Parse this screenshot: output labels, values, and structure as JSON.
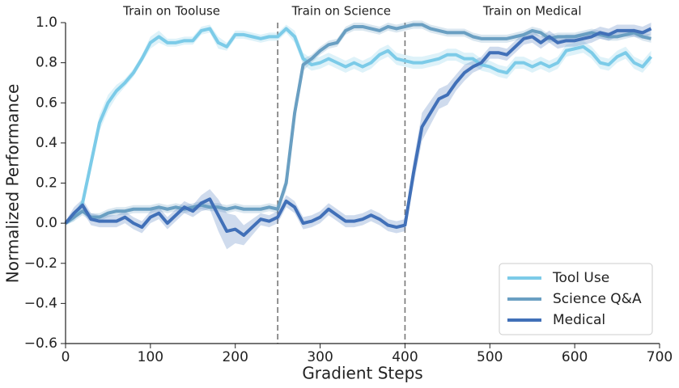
{
  "chart_data": {
    "type": "line",
    "xlabel": "Gradient Steps",
    "ylabel": "Normalized Performance",
    "xlim": [
      0,
      700
    ],
    "ylim": [
      -0.6,
      1.0
    ],
    "xticks": [
      0,
      100,
      200,
      300,
      400,
      500,
      600,
      700
    ],
    "yticks": [
      {
        "value": -0.6,
        "label": "−0.6"
      },
      {
        "value": -0.4,
        "label": "−0.4"
      },
      {
        "value": -0.2,
        "label": "−0.2"
      },
      {
        "value": 0,
        "label": "0.0"
      },
      0.2,
      0.4,
      0.6,
      0.8,
      {
        "value": 1.0,
        "label": "1.0"
      }
    ],
    "legend": "lower right",
    "phases": [
      {
        "label": "Train on Tooluse",
        "start": 0,
        "end": 250
      },
      {
        "label": "Train on Science",
        "start": 250,
        "end": 400
      },
      {
        "label": "Train on Medical",
        "start": 400,
        "end": 700
      }
    ],
    "x": [
      0,
      10,
      20,
      30,
      40,
      50,
      60,
      70,
      80,
      90,
      100,
      110,
      120,
      130,
      140,
      150,
      160,
      170,
      180,
      190,
      200,
      210,
      220,
      230,
      240,
      250,
      260,
      270,
      280,
      290,
      300,
      310,
      320,
      330,
      340,
      350,
      360,
      370,
      380,
      390,
      400,
      410,
      420,
      430,
      440,
      450,
      460,
      470,
      480,
      490,
      500,
      510,
      520,
      530,
      540,
      550,
      560,
      570,
      580,
      590,
      600,
      610,
      620,
      630,
      640,
      650,
      660,
      670,
      680,
      690
    ],
    "series": [
      {
        "name": "Tool Use",
        "color": "#7ccbe8",
        "values": [
          0.0,
          0.03,
          0.1,
          0.3,
          0.5,
          0.6,
          0.66,
          0.7,
          0.75,
          0.82,
          0.9,
          0.93,
          0.9,
          0.9,
          0.91,
          0.91,
          0.96,
          0.97,
          0.9,
          0.88,
          0.94,
          0.94,
          0.93,
          0.92,
          0.93,
          0.93,
          0.97,
          0.93,
          0.82,
          0.79,
          0.8,
          0.82,
          0.8,
          0.78,
          0.8,
          0.78,
          0.8,
          0.84,
          0.86,
          0.82,
          0.81,
          0.8,
          0.8,
          0.81,
          0.82,
          0.84,
          0.84,
          0.82,
          0.82,
          0.79,
          0.78,
          0.76,
          0.75,
          0.8,
          0.8,
          0.78,
          0.8,
          0.78,
          0.8,
          0.86,
          0.87,
          0.88,
          0.85,
          0.8,
          0.79,
          0.83,
          0.85,
          0.8,
          0.78,
          0.83
        ],
        "errors": [
          0.01,
          0.02,
          0.02,
          0.04,
          0.04,
          0.04,
          0.03,
          0.02,
          0.02,
          0.02,
          0.03,
          0.03,
          0.02,
          0.02,
          0.02,
          0.02,
          0.02,
          0.02,
          0.03,
          0.02,
          0.02,
          0.02,
          0.02,
          0.02,
          0.02,
          0.02,
          0.02,
          0.03,
          0.03,
          0.03,
          0.03,
          0.03,
          0.03,
          0.03,
          0.03,
          0.03,
          0.03,
          0.03,
          0.03,
          0.03,
          0.03,
          0.03,
          0.03,
          0.03,
          0.03,
          0.03,
          0.03,
          0.03,
          0.03,
          0.03,
          0.03,
          0.03,
          0.03,
          0.03,
          0.03,
          0.03,
          0.03,
          0.03,
          0.03,
          0.03,
          0.03,
          0.03,
          0.03,
          0.03,
          0.03,
          0.03,
          0.03,
          0.03,
          0.03,
          0.03
        ]
      },
      {
        "name": "Science Q&A",
        "color": "#6a9fc2",
        "values": [
          0.0,
          0.03,
          0.06,
          0.03,
          0.03,
          0.05,
          0.06,
          0.06,
          0.07,
          0.07,
          0.07,
          0.08,
          0.07,
          0.08,
          0.07,
          0.08,
          0.09,
          0.08,
          0.08,
          0.07,
          0.08,
          0.07,
          0.07,
          0.07,
          0.08,
          0.07,
          0.2,
          0.55,
          0.79,
          0.82,
          0.86,
          0.89,
          0.9,
          0.96,
          0.98,
          0.98,
          0.97,
          0.96,
          0.98,
          0.97,
          0.98,
          0.99,
          0.99,
          0.97,
          0.96,
          0.95,
          0.95,
          0.95,
          0.93,
          0.92,
          0.92,
          0.92,
          0.92,
          0.93,
          0.94,
          0.96,
          0.95,
          0.92,
          0.93,
          0.93,
          0.93,
          0.94,
          0.95,
          0.94,
          0.93,
          0.93,
          0.94,
          0.95,
          0.93,
          0.92
        ],
        "errors": [
          0.01,
          0.02,
          0.02,
          0.02,
          0.02,
          0.02,
          0.02,
          0.02,
          0.02,
          0.02,
          0.02,
          0.02,
          0.02,
          0.02,
          0.02,
          0.02,
          0.02,
          0.02,
          0.02,
          0.02,
          0.02,
          0.02,
          0.02,
          0.02,
          0.02,
          0.02,
          0.04,
          0.05,
          0.03,
          0.02,
          0.02,
          0.02,
          0.02,
          0.02,
          0.02,
          0.02,
          0.02,
          0.02,
          0.02,
          0.02,
          0.02,
          0.02,
          0.02,
          0.02,
          0.02,
          0.02,
          0.02,
          0.02,
          0.02,
          0.02,
          0.02,
          0.02,
          0.02,
          0.02,
          0.02,
          0.02,
          0.02,
          0.02,
          0.02,
          0.02,
          0.02,
          0.02,
          0.02,
          0.02,
          0.02,
          0.02,
          0.02,
          0.02,
          0.02,
          0.02
        ]
      },
      {
        "name": "Medical",
        "color": "#4170b8",
        "values": [
          0.0,
          0.05,
          0.09,
          0.02,
          0.01,
          0.01,
          0.01,
          0.03,
          0.0,
          -0.02,
          0.03,
          0.05,
          0.0,
          0.04,
          0.08,
          0.06,
          0.1,
          0.12,
          0.04,
          -0.04,
          -0.03,
          -0.06,
          -0.02,
          0.02,
          0.01,
          0.03,
          0.11,
          0.08,
          0.0,
          0.01,
          0.03,
          0.07,
          0.04,
          0.01,
          0.01,
          0.02,
          0.04,
          0.02,
          -0.01,
          -0.02,
          -0.01,
          0.25,
          0.48,
          0.55,
          0.62,
          0.64,
          0.7,
          0.75,
          0.78,
          0.8,
          0.85,
          0.85,
          0.84,
          0.88,
          0.92,
          0.93,
          0.9,
          0.93,
          0.9,
          0.91,
          0.91,
          0.92,
          0.93,
          0.95,
          0.94,
          0.96,
          0.96,
          0.96,
          0.95,
          0.97
        ],
        "errors": [
          0.01,
          0.03,
          0.03,
          0.03,
          0.03,
          0.03,
          0.03,
          0.03,
          0.03,
          0.03,
          0.03,
          0.03,
          0.03,
          0.03,
          0.03,
          0.03,
          0.04,
          0.05,
          0.08,
          0.09,
          0.07,
          0.05,
          0.04,
          0.03,
          0.03,
          0.03,
          0.03,
          0.03,
          0.03,
          0.03,
          0.03,
          0.03,
          0.03,
          0.03,
          0.03,
          0.03,
          0.03,
          0.03,
          0.03,
          0.03,
          0.03,
          0.06,
          0.07,
          0.06,
          0.05,
          0.05,
          0.04,
          0.04,
          0.03,
          0.03,
          0.03,
          0.03,
          0.03,
          0.03,
          0.03,
          0.03,
          0.03,
          0.03,
          0.03,
          0.03,
          0.03,
          0.03,
          0.03,
          0.03,
          0.03,
          0.03,
          0.03,
          0.03,
          0.03,
          0.03
        ]
      }
    ]
  }
}
